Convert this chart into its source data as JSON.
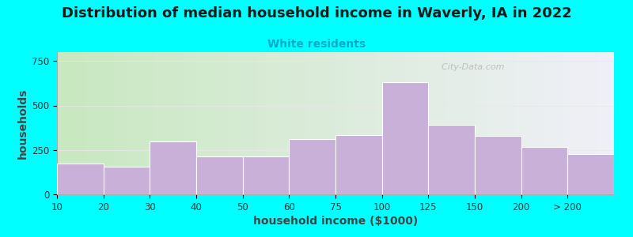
{
  "title": "Distribution of median household income in Waverly, IA in 2022",
  "subtitle": "White residents",
  "xlabel": "household income ($1000)",
  "ylabel": "households",
  "bg_color": "#00FFFF",
  "bar_color": "#c8b0d8",
  "bar_edge_color": "#ffffff",
  "categories": [
    "10",
    "20",
    "30",
    "40",
    "50",
    "60",
    "75",
    "100",
    "125",
    "150",
    "200",
    "> 200"
  ],
  "values": [
    175,
    155,
    300,
    215,
    215,
    310,
    335,
    630,
    390,
    330,
    265,
    225
  ],
  "ylim": [
    0,
    800
  ],
  "yticks": [
    0,
    250,
    500,
    750
  ],
  "title_fontsize": 13,
  "subtitle_fontsize": 10,
  "subtitle_color": "#00AACC",
  "axis_label_fontsize": 10,
  "tick_fontsize": 8.5,
  "watermark_text": "  City-Data.com",
  "watermark_color": "#b0b0b0",
  "gradient_left": "#c8e8c0",
  "gradient_right": "#f0f0f8"
}
